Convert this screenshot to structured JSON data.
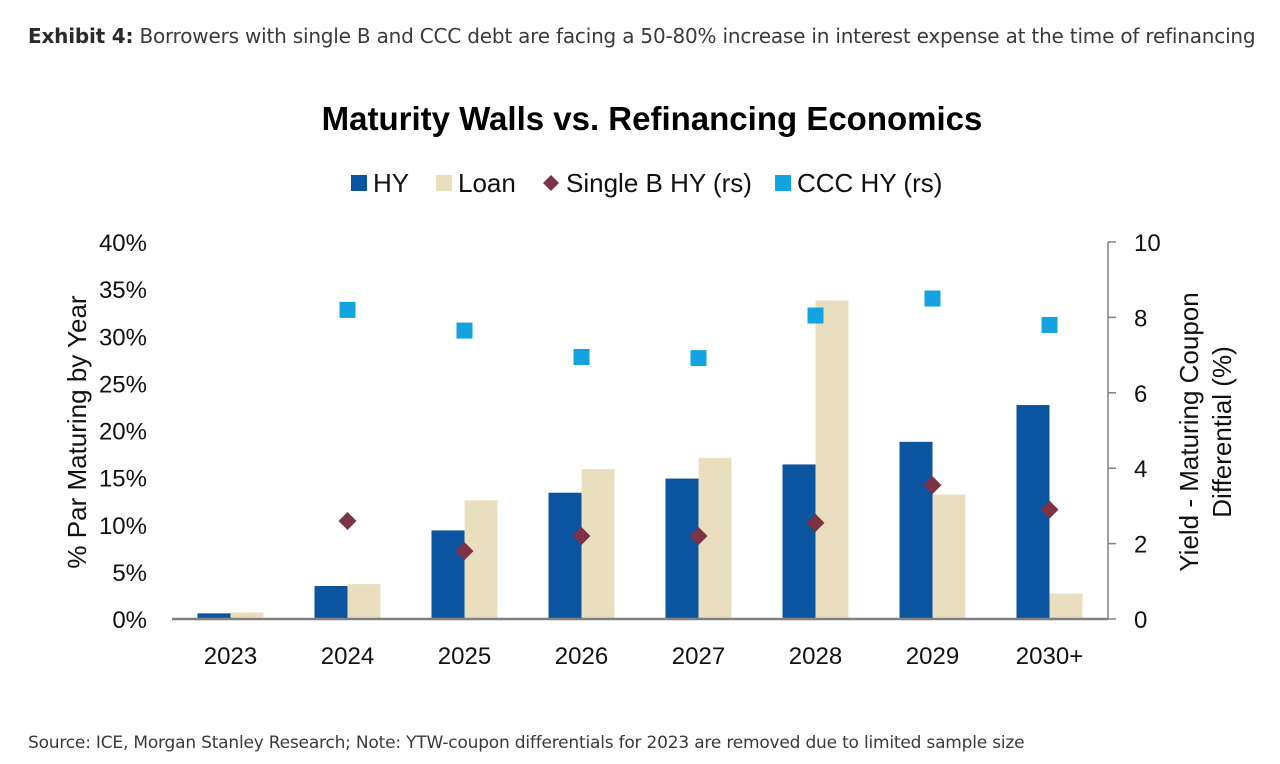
{
  "header": {
    "exhibit_label": "Exhibit 4:",
    "exhibit_text": "Borrowers with single B and CCC debt are facing a 50-80% increase in interest expense at the time of refinancing"
  },
  "footer": {
    "source": "Source: ICE, Morgan Stanley Research; Note: YTW-coupon differentials for 2023 are removed due to limited sample size"
  },
  "chart_data": {
    "type": "bar",
    "title": "Maturity Walls vs. Refinancing Economics",
    "categories": [
      "2023",
      "2024",
      "2025",
      "2026",
      "2027",
      "2028",
      "2029",
      "2030+"
    ],
    "ylabel_left": "% Par Maturing by Year",
    "ylabel_right_line1": "Yield - Maturing Coupon",
    "ylabel_right_line2": "Differential (%)",
    "ylim_left": [
      0,
      40
    ],
    "yticks_left": [
      "0%",
      "5%",
      "10%",
      "15%",
      "20%",
      "25%",
      "30%",
      "35%",
      "40%"
    ],
    "ylim_right": [
      0,
      10
    ],
    "yticks_right": [
      "0",
      "2",
      "4",
      "6",
      "8",
      "10"
    ],
    "series": [
      {
        "name": "HY",
        "kind": "bar",
        "axis": "left",
        "color": "#0b54a0",
        "values": [
          0.6,
          3.5,
          9.4,
          13.4,
          14.9,
          16.4,
          18.8,
          22.7
        ]
      },
      {
        "name": "Loan",
        "kind": "bar",
        "axis": "left",
        "color": "#e9dfbf",
        "values": [
          0.7,
          3.7,
          12.6,
          15.9,
          17.1,
          33.8,
          13.2,
          2.7
        ]
      },
      {
        "name": "Single B HY (rs)",
        "kind": "diamond",
        "axis": "right",
        "color": "#7d3245",
        "values": [
          null,
          2.6,
          1.8,
          2.2,
          2.2,
          2.55,
          3.55,
          2.9
        ]
      },
      {
        "name": "CCC HY (rs)",
        "kind": "square",
        "axis": "right",
        "color": "#12a3e0",
        "values": [
          null,
          8.2,
          7.65,
          6.95,
          6.92,
          8.05,
          8.5,
          7.8
        ]
      }
    ]
  }
}
